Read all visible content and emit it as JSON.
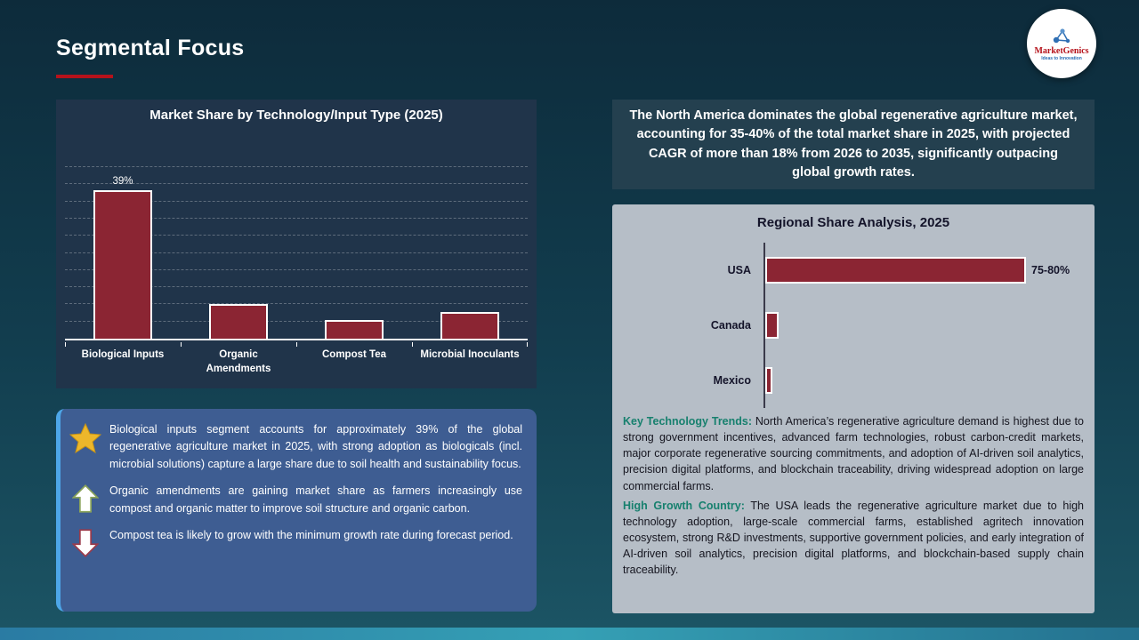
{
  "slide": {
    "title": "Segmental Focus"
  },
  "logo": {
    "brand": "MarketGenics",
    "tagline": "Ideas to Innovation"
  },
  "chart_data": [
    {
      "type": "bar",
      "title": "Market Share by Technology/Input Type (2025)",
      "categories": [
        "Biological Inputs",
        "Organic Amendments",
        "Compost Tea",
        "Microbial Inoculants"
      ],
      "values": [
        39,
        9,
        5,
        7
      ],
      "data_labels": [
        "39%",
        "",
        "",
        ""
      ],
      "xlabel": "",
      "ylabel": "",
      "ylim": [
        0,
        45
      ],
      "grid": "dashed-horizontal",
      "legend": "none",
      "bar_color": "#8b2533"
    },
    {
      "type": "bar",
      "orientation": "horizontal",
      "title": "Regional Share Analysis, 2025",
      "categories": [
        "USA",
        "Canada",
        "Mexico"
      ],
      "values": [
        78,
        4,
        2
      ],
      "data_labels": [
        "75-80%",
        "",
        ""
      ],
      "xlabel": "",
      "ylabel": "",
      "xlim": [
        0,
        100
      ],
      "grid": "off",
      "legend": "none",
      "bar_color": "#8b2533"
    }
  ],
  "insights": {
    "items": [
      {
        "icon": "star-icon",
        "text": "Biological inputs segment accounts for approximately 39% of the global regenerative agriculture market in 2025, with strong adoption as biologicals (incl. microbial solutions) capture a large share due to soil health and sustainability focus."
      },
      {
        "icon": "up-arrow-icon",
        "text": "Organic amendments are gaining market share as farmers increasingly use compost and organic matter to improve soil structure and organic carbon."
      },
      {
        "icon": "down-arrow-icon",
        "text": "Compost tea is likely to grow with the minimum growth rate during forecast period."
      }
    ]
  },
  "right_panel": {
    "headline": "The North America dominates the global regenerative agriculture market, accounting for 35-40% of the total market share in 2025, with projected CAGR of more than 18% from 2026 to 2035, significantly outpacing global growth rates.",
    "paragraphs": [
      {
        "label": "Key Technology Trends:",
        "text": "North America’s regenerative agriculture demand is highest due to strong government incentives, advanced farm technologies, robust carbon-credit markets, major corporate regenerative sourcing commitments, and adoption of AI-driven soil analytics, precision digital platforms, and blockchain traceability, driving widespread adoption on large commercial farms."
      },
      {
        "label": "High Growth Country:",
        "text": "The USA leads the regenerative agriculture market due to high technology adoption, large-scale commercial farms, established agritech innovation ecosystem, strong R&D investments, supportive government policies, and early integration of AI-driven soil analytics, precision digital platforms, and blockchain-based supply chain traceability."
      }
    ]
  },
  "colors": {
    "accent_red": "#b5121b",
    "bar_maroon": "#8b2533",
    "teal_label": "#17806e",
    "insight_bg": "#3e5d92",
    "insight_accent": "#4da6e8"
  }
}
